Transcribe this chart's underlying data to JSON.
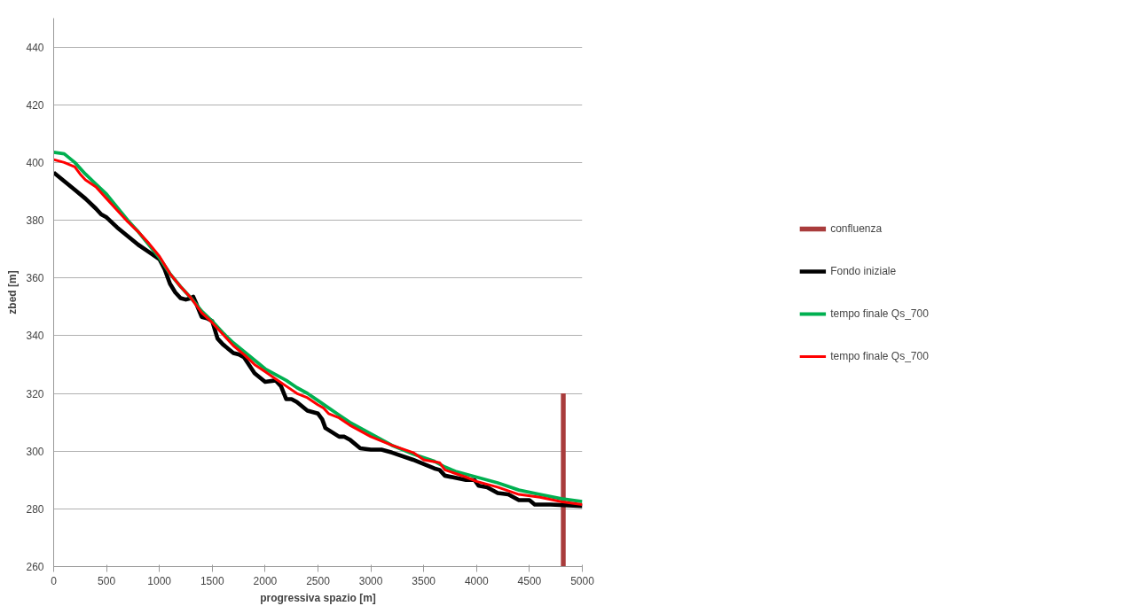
{
  "chart_data": {
    "type": "line",
    "xlabel": "progressiva spazio [m]",
    "ylabel": "zbed [m]",
    "xlim": [
      0,
      5000
    ],
    "xticks": [
      0,
      500,
      1000,
      1500,
      2000,
      2500,
      3000,
      3500,
      4000,
      4500,
      5000
    ],
    "ylim": [
      260,
      450
    ],
    "yticks": [
      260,
      280,
      300,
      320,
      340,
      360,
      380,
      400,
      420,
      440
    ],
    "grid": "y",
    "legend": "right",
    "line_style": "solid",
    "marker": "none",
    "series": [
      {
        "name": "confluenza",
        "color": "#a93c3c",
        "x": [
          4820,
          4820
        ],
        "values": [
          260,
          320
        ]
      },
      {
        "name": "Fondo iniziale",
        "color": "#000000",
        "x": [
          0,
          100,
          200,
          300,
          400,
          450,
          500,
          600,
          700,
          800,
          900,
          1000,
          1050,
          1100,
          1150,
          1200,
          1250,
          1300,
          1320,
          1350,
          1400,
          1450,
          1500,
          1550,
          1600,
          1700,
          1750,
          1800,
          1900,
          2000,
          2100,
          2150,
          2200,
          2250,
          2300,
          2400,
          2500,
          2540,
          2570,
          2700,
          2750,
          2800,
          2900,
          3000,
          3100,
          3200,
          3400,
          3600,
          3650,
          3700,
          3900,
          3980,
          4020,
          4100,
          4200,
          4300,
          4400,
          4500,
          4550,
          4700,
          5000
        ],
        "values": [
          396.5,
          393.5,
          390.5,
          387.5,
          384,
          382,
          381,
          377.5,
          374.5,
          371.5,
          369,
          366.5,
          363,
          358,
          355,
          353,
          352.5,
          353,
          353.5,
          351,
          346.5,
          346,
          345,
          339,
          337,
          334,
          333.5,
          332.5,
          327,
          324,
          324.5,
          322.5,
          318,
          318,
          317,
          314,
          313,
          311,
          308,
          305,
          305,
          304,
          301,
          300.5,
          300.5,
          299.5,
          297,
          294,
          293.5,
          291.5,
          290,
          290,
          288,
          287.5,
          285.5,
          285,
          283,
          283,
          281.5,
          281.5,
          281
        ]
      },
      {
        "name": "tempo finale Qs_700",
        "color": "#00b050",
        "x": [
          0,
          100,
          200,
          300,
          400,
          500,
          600,
          700,
          800,
          900,
          1000,
          1100,
          1200,
          1300,
          1400,
          1500,
          1600,
          1700,
          1800,
          1900,
          2000,
          2100,
          2200,
          2300,
          2400,
          2500,
          2600,
          2700,
          2800,
          2900,
          3000,
          3200,
          3400,
          3600,
          3700,
          3800,
          4000,
          4200,
          4400,
          4600,
          4800,
          5000
        ],
        "values": [
          403.5,
          403,
          400,
          396,
          392.5,
          389,
          384.5,
          380,
          376,
          371.5,
          367,
          361.5,
          357,
          353,
          348.5,
          345,
          341,
          337.5,
          334.5,
          331.5,
          328.5,
          326.5,
          324.5,
          322,
          320,
          317.5,
          315,
          312.5,
          310,
          308,
          306,
          302,
          299,
          296.5,
          294.5,
          293,
          291,
          289,
          286.5,
          285,
          283.5,
          282.5
        ]
      },
      {
        "name": "tempo finale Qs_700",
        "color": "#ff0000",
        "x": [
          0,
          100,
          200,
          250,
          300,
          400,
          500,
          600,
          700,
          800,
          900,
          1000,
          1100,
          1200,
          1300,
          1400,
          1500,
          1600,
          1700,
          1800,
          1900,
          2000,
          2100,
          2200,
          2300,
          2400,
          2500,
          2550,
          2600,
          2700,
          2800,
          3000,
          3200,
          3400,
          3500,
          3650,
          3700,
          3900,
          4000,
          4200,
          4400,
          4600,
          4800,
          5000
        ],
        "values": [
          401,
          400,
          398.5,
          396,
          394,
          391.5,
          387.5,
          383.5,
          379.5,
          376,
          372,
          367.5,
          361.5,
          357,
          353,
          348,
          344.5,
          340.5,
          336.5,
          333.5,
          330,
          327.5,
          325,
          322.5,
          320,
          318.5,
          316,
          315,
          313,
          311.5,
          309,
          305,
          302,
          299.5,
          297,
          296,
          293.5,
          291,
          289.5,
          287.5,
          285,
          284,
          282.5,
          281.5
        ]
      }
    ]
  }
}
